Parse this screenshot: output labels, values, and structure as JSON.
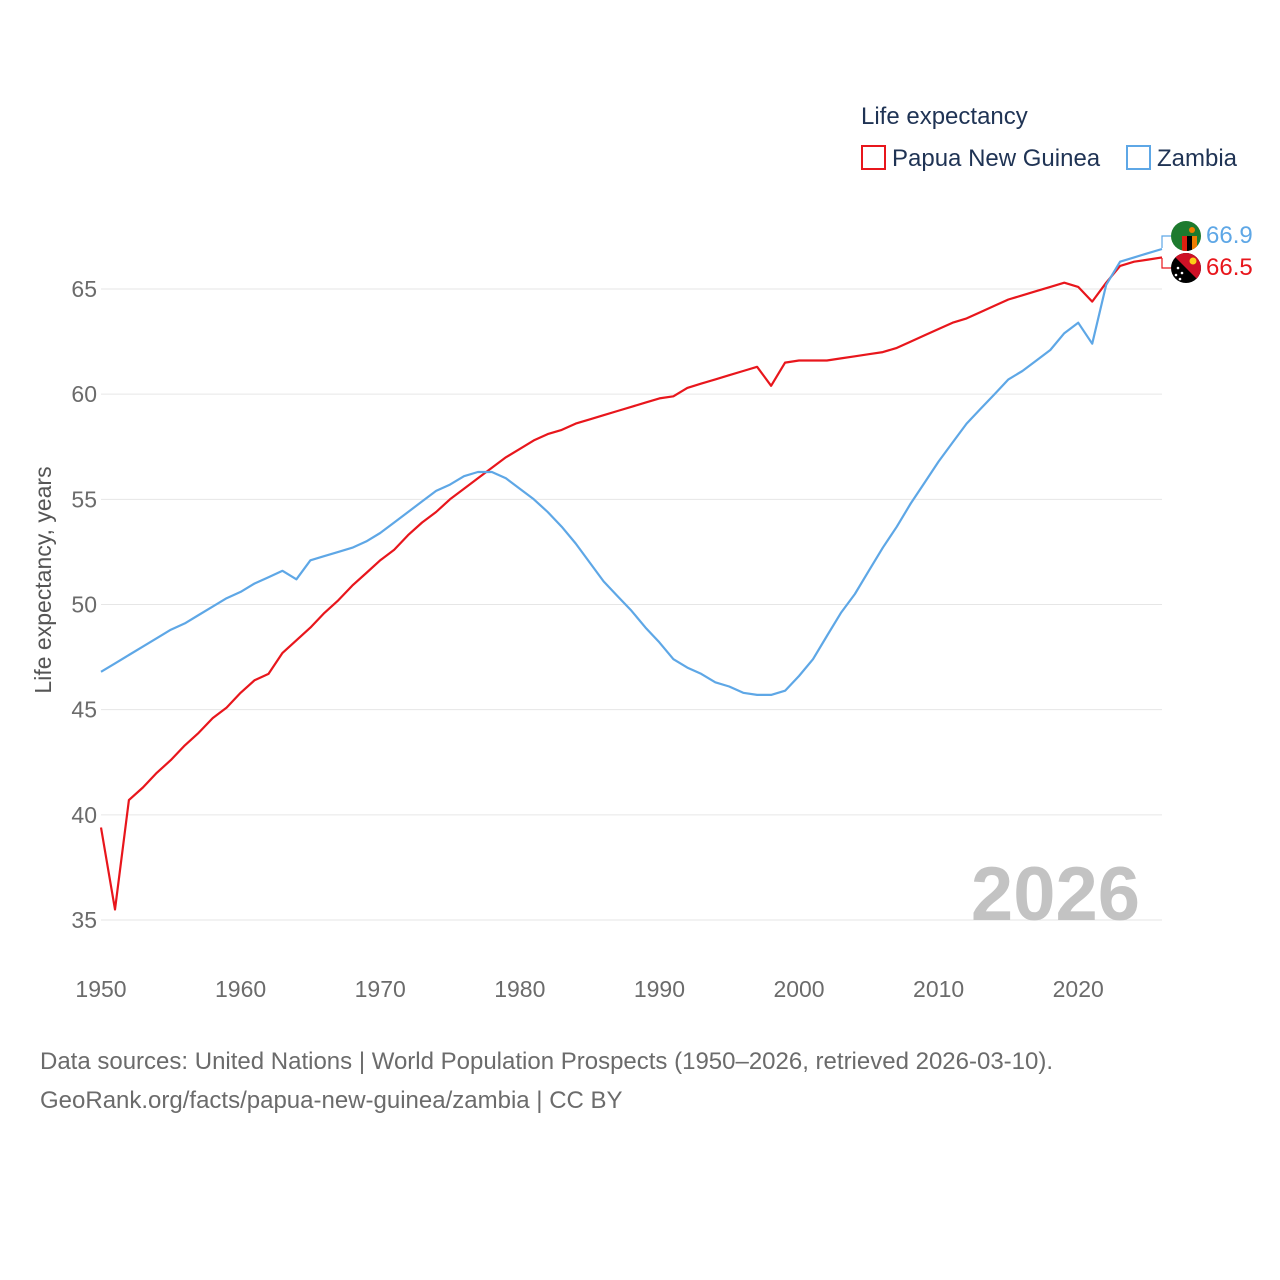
{
  "chart_data": {
    "type": "line",
    "title": "Life expectancy",
    "ylabel": "Life expectancy, years",
    "xlabel": "",
    "xlim": [
      1950,
      2026
    ],
    "ylim": [
      35,
      68
    ],
    "yticks": [
      35,
      40,
      45,
      50,
      55,
      60,
      65
    ],
    "xticks": [
      1950,
      1960,
      1970,
      1980,
      1990,
      2000,
      2010,
      2020
    ],
    "year_label": "2026",
    "legend_position": "top-right",
    "x": [
      1950,
      1951,
      1952,
      1953,
      1954,
      1955,
      1956,
      1957,
      1958,
      1959,
      1960,
      1961,
      1962,
      1963,
      1964,
      1965,
      1966,
      1967,
      1968,
      1969,
      1970,
      1971,
      1972,
      1973,
      1974,
      1975,
      1976,
      1977,
      1978,
      1979,
      1980,
      1981,
      1982,
      1983,
      1984,
      1985,
      1986,
      1987,
      1988,
      1989,
      1990,
      1991,
      1992,
      1993,
      1994,
      1995,
      1996,
      1997,
      1998,
      1999,
      2000,
      2001,
      2002,
      2003,
      2004,
      2005,
      2006,
      2007,
      2008,
      2009,
      2010,
      2011,
      2012,
      2013,
      2014,
      2015,
      2016,
      2017,
      2018,
      2019,
      2020,
      2021,
      2022,
      2023,
      2024,
      2025,
      2026
    ],
    "series": [
      {
        "name": "Papua New Guinea",
        "color": "#e8161c",
        "end_value": "66.5",
        "values": [
          39.4,
          35.5,
          40.7,
          41.3,
          42.0,
          42.6,
          43.3,
          43.9,
          44.6,
          45.1,
          45.8,
          46.4,
          46.7,
          47.7,
          48.3,
          48.9,
          49.6,
          50.2,
          50.9,
          51.5,
          52.1,
          52.6,
          53.3,
          53.9,
          54.4,
          55.0,
          55.5,
          56.0,
          56.5,
          57.0,
          57.4,
          57.8,
          58.1,
          58.3,
          58.6,
          58.8,
          59.0,
          59.2,
          59.4,
          59.6,
          59.8,
          59.9,
          60.3,
          60.5,
          60.7,
          60.9,
          61.1,
          61.3,
          60.4,
          61.5,
          61.6,
          61.6,
          61.6,
          61.7,
          61.8,
          61.9,
          62.0,
          62.2,
          62.5,
          62.8,
          63.1,
          63.4,
          63.6,
          63.9,
          64.2,
          64.5,
          64.7,
          64.9,
          65.1,
          65.3,
          65.1,
          64.4,
          65.3,
          66.1,
          66.3,
          66.4,
          66.5
        ]
      },
      {
        "name": "Zambia",
        "color": "#5ea7e6",
        "end_value": "66.9",
        "values": [
          46.8,
          47.2,
          47.6,
          48.0,
          48.4,
          48.8,
          49.1,
          49.5,
          49.9,
          50.3,
          50.6,
          51.0,
          51.3,
          51.6,
          51.2,
          52.1,
          52.3,
          52.5,
          52.7,
          53.0,
          53.4,
          53.9,
          54.4,
          54.9,
          55.4,
          55.7,
          56.1,
          56.3,
          56.3,
          56.0,
          55.5,
          55.0,
          54.4,
          53.7,
          52.9,
          52.0,
          51.1,
          50.4,
          49.7,
          48.9,
          48.2,
          47.4,
          47.0,
          46.7,
          46.3,
          46.1,
          45.8,
          45.7,
          45.7,
          45.9,
          46.6,
          47.4,
          48.5,
          49.6,
          50.5,
          51.6,
          52.7,
          53.7,
          54.8,
          55.8,
          56.8,
          57.7,
          58.6,
          59.3,
          60.0,
          60.7,
          61.1,
          61.6,
          62.1,
          62.9,
          63.4,
          62.4,
          65.2,
          66.3,
          66.5,
          66.7,
          66.9
        ]
      }
    ]
  },
  "footer": {
    "source_line": "Data sources: United Nations | World Population Prospects (1950–2026, retrieved 2026-03-10).",
    "credit_line": "GeoRank.org/facts/papua-new-guinea/zambia | CC BY"
  }
}
